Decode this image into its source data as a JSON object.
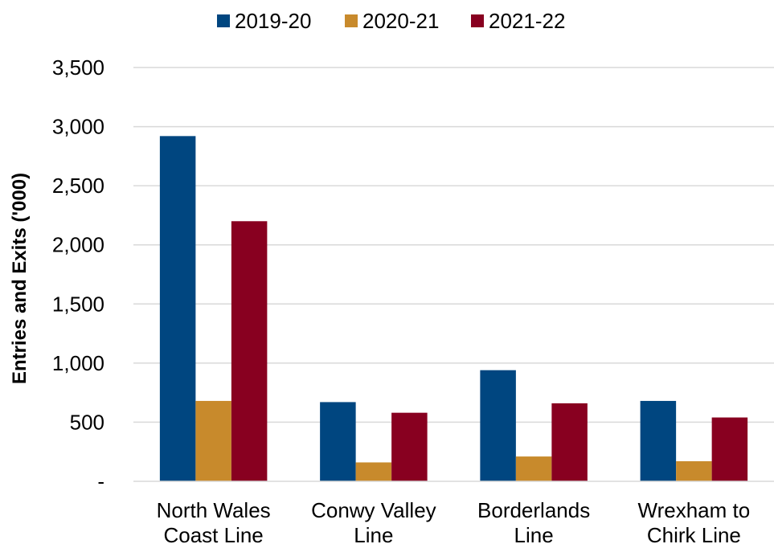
{
  "chart_data": {
    "type": "bar",
    "title": "",
    "xlabel": "",
    "ylabel": "Entries and Exits ('000)",
    "categories": [
      [
        "North Wales",
        "Coast Line"
      ],
      [
        "Conwy Valley",
        "Line"
      ],
      [
        "Borderlands",
        "Line"
      ],
      [
        "Wrexham to",
        "Chirk Line"
      ]
    ],
    "series": [
      {
        "name": "2019-20",
        "color": "#004680",
        "values": [
          2920,
          670,
          940,
          680
        ]
      },
      {
        "name": "2020-21",
        "color": "#C88A2C",
        "values": [
          680,
          160,
          210,
          170
        ]
      },
      {
        "name": "2021-22",
        "color": "#880020",
        "values": [
          2200,
          580,
          660,
          540
        ]
      }
    ],
    "ylim": [
      0,
      3500
    ],
    "yticks": [
      0,
      500,
      1000,
      1500,
      2000,
      2500,
      3000,
      3500
    ],
    "ytick_labels": [
      "-",
      "500",
      "1,000",
      "1,500",
      "2,000",
      "2,500",
      "3,000",
      "3,500"
    ],
    "grid": true,
    "legend_position": "top"
  }
}
